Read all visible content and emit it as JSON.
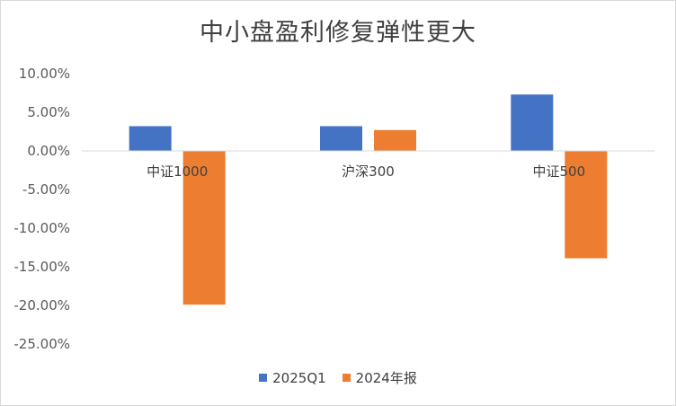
{
  "chart_data": {
    "type": "bar",
    "title": "中小盘盈利修复弹性更大",
    "categories": [
      "中证1000",
      "沪深300",
      "中证500"
    ],
    "series": [
      {
        "name": "2025Q1",
        "values": [
          3.2,
          3.2,
          7.3
        ],
        "color": "#4472C4"
      },
      {
        "name": "2024年报",
        "values": [
          -19.9,
          2.7,
          -13.9
        ],
        "color": "#ED7D31"
      }
    ],
    "y_ticks": [
      "10.00%",
      "5.00%",
      "0.00%",
      "-5.00%",
      "-10.00%",
      "-15.00%",
      "-20.00%",
      "-25.00%"
    ],
    "ylim": [
      -25,
      10
    ],
    "xlabel": "",
    "ylabel": "",
    "grid": false,
    "legend_position": "bottom"
  }
}
